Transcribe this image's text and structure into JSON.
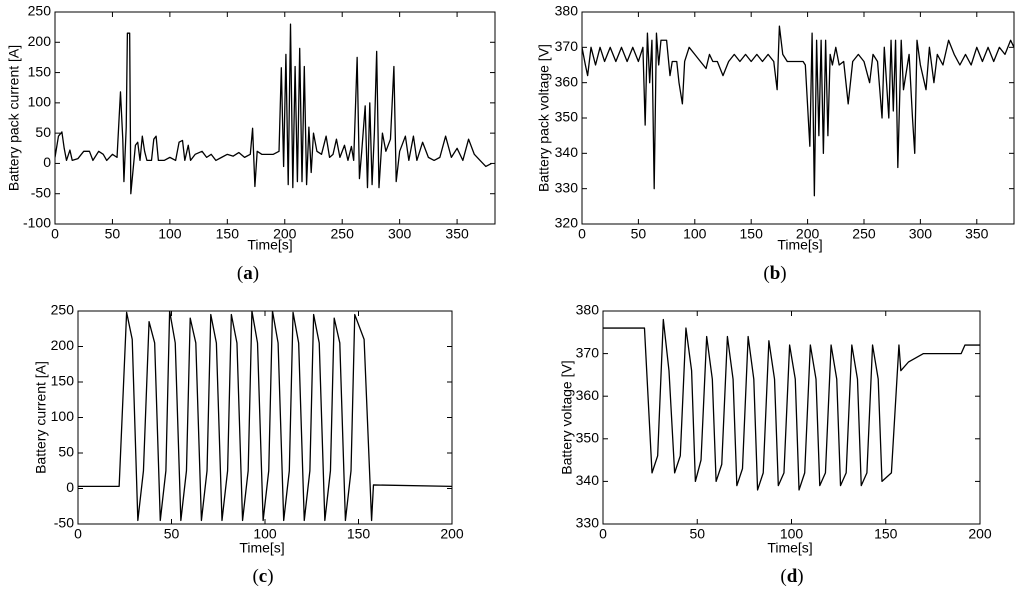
{
  "chart_data": [
    {
      "type": "line",
      "caption": "(a)",
      "xlabel": "Time[s]",
      "ylabel": "Battery pack current [A]",
      "xlim": [
        0,
        383
      ],
      "ylim": [
        -100,
        250
      ],
      "xticks": [
        0,
        50,
        100,
        150,
        200,
        250,
        300,
        350
      ],
      "yticks": [
        -100,
        -50,
        0,
        50,
        100,
        150,
        200,
        250
      ],
      "color": "#000000",
      "x": [
        0,
        3,
        6,
        8,
        10,
        13,
        15,
        20,
        25,
        30,
        33,
        38,
        42,
        45,
        50,
        54,
        57,
        59,
        60,
        62,
        63,
        65,
        66,
        68,
        70,
        72,
        74,
        76,
        78,
        80,
        84,
        86,
        88,
        90,
        95,
        100,
        105,
        108,
        111,
        113,
        116,
        118,
        122,
        128,
        132,
        136,
        140,
        145,
        150,
        155,
        160,
        165,
        170,
        172,
        174,
        176,
        180,
        185,
        190,
        195,
        197,
        199,
        201,
        203,
        205,
        207,
        209,
        211,
        213,
        215,
        217,
        219,
        221,
        223,
        225,
        228,
        232,
        236,
        239,
        242,
        245,
        248,
        252,
        255,
        258,
        260,
        263,
        265,
        267,
        270,
        272,
        274,
        276,
        278,
        280,
        282,
        285,
        288,
        292,
        295,
        297,
        300,
        305,
        308,
        312,
        315,
        320,
        325,
        330,
        335,
        340,
        345,
        350,
        355,
        360,
        365,
        370,
        375,
        380
      ],
      "values": [
        10,
        45,
        52,
        25,
        5,
        22,
        5,
        8,
        20,
        20,
        5,
        20,
        15,
        5,
        15,
        10,
        118,
        40,
        -30,
        60,
        215,
        215,
        -50,
        -10,
        30,
        35,
        5,
        45,
        20,
        5,
        5,
        40,
        45,
        5,
        5,
        10,
        5,
        35,
        38,
        5,
        30,
        5,
        15,
        20,
        10,
        15,
        5,
        10,
        15,
        12,
        18,
        10,
        15,
        58,
        -38,
        20,
        15,
        15,
        15,
        20,
        158,
        -5,
        180,
        -35,
        230,
        -40,
        160,
        -30,
        190,
        -30,
        160,
        -35,
        60,
        -15,
        50,
        20,
        15,
        45,
        10,
        15,
        40,
        10,
        30,
        5,
        28,
        5,
        175,
        -25,
        20,
        95,
        -40,
        100,
        -35,
        50,
        185,
        -40,
        50,
        20,
        40,
        160,
        -30,
        20,
        45,
        5,
        45,
        5,
        35,
        10,
        5,
        10,
        45,
        10,
        25,
        5,
        40,
        15,
        5,
        -5,
        0
      ]
    },
    {
      "type": "line",
      "caption": "(b)",
      "xlabel": "Time[s]",
      "ylabel": "Battery pack voltage [V]",
      "xlim": [
        0,
        383
      ],
      "ylim": [
        320,
        380
      ],
      "xticks": [
        0,
        50,
        100,
        150,
        200,
        250,
        300,
        350
      ],
      "yticks": [
        320,
        330,
        340,
        350,
        360,
        370,
        380
      ],
      "color": "#000000",
      "x": [
        0,
        3,
        5,
        8,
        12,
        16,
        20,
        25,
        30,
        35,
        40,
        45,
        50,
        54,
        56,
        58,
        60,
        62,
        64,
        66,
        68,
        70,
        75,
        78,
        80,
        84,
        86,
        89,
        91,
        95,
        100,
        105,
        110,
        113,
        116,
        120,
        125,
        130,
        135,
        140,
        145,
        150,
        155,
        160,
        165,
        170,
        173,
        175,
        178,
        182,
        190,
        196,
        198,
        202,
        204,
        206,
        208,
        210,
        212,
        214,
        216,
        218,
        220,
        222,
        225,
        228,
        232,
        236,
        240,
        245,
        250,
        255,
        258,
        262,
        266,
        268,
        270,
        272,
        274,
        276,
        278,
        280,
        283,
        285,
        290,
        293,
        295,
        297,
        300,
        305,
        308,
        312,
        315,
        320,
        325,
        330,
        335,
        340,
        345,
        350,
        355,
        360,
        365,
        370,
        375,
        380,
        383
      ],
      "values": [
        370,
        365,
        362,
        370,
        365,
        370,
        366,
        370,
        366,
        370,
        366,
        370,
        366,
        370,
        348,
        374,
        360,
        372,
        330,
        374,
        365,
        372,
        372,
        362,
        366,
        366,
        360,
        354,
        366,
        370,
        368,
        366,
        364,
        368,
        366,
        366,
        362,
        366,
        368,
        366,
        368,
        366,
        368,
        366,
        368,
        366,
        358,
        376,
        368,
        366,
        366,
        366,
        365,
        342,
        374,
        328,
        372,
        345,
        372,
        340,
        372,
        345,
        368,
        365,
        370,
        365,
        366,
        354,
        366,
        368,
        366,
        360,
        368,
        366,
        350,
        370,
        360,
        350,
        372,
        352,
        372,
        336,
        372,
        358,
        368,
        350,
        340,
        372,
        365,
        358,
        370,
        360,
        368,
        365,
        372,
        368,
        365,
        368,
        365,
        370,
        366,
        370,
        366,
        370,
        368,
        372,
        370
      ]
    },
    {
      "type": "line",
      "caption": "(c)",
      "xlabel": "Time[s]",
      "ylabel": "Battery current [A]",
      "xlim": [
        0,
        200
      ],
      "ylim": [
        -50,
        250
      ],
      "xticks": [
        0,
        50,
        100,
        150,
        200
      ],
      "yticks": [
        -50,
        0,
        50,
        100,
        150,
        200,
        250
      ],
      "color": "#000000",
      "x": [
        0,
        22,
        26,
        29,
        32,
        35,
        38,
        41,
        44,
        47,
        49,
        52,
        55,
        58,
        60,
        63,
        66,
        69,
        71,
        74,
        77,
        80,
        82,
        85,
        88,
        91,
        93,
        96,
        99,
        102,
        104,
        107,
        110,
        113,
        115,
        118,
        121,
        124,
        126,
        129,
        132,
        135,
        137,
        140,
        143,
        146,
        148,
        153,
        157,
        158,
        200
      ],
      "values": [
        3,
        3,
        248,
        210,
        -45,
        25,
        235,
        205,
        -45,
        25,
        250,
        205,
        -45,
        25,
        240,
        205,
        -45,
        25,
        245,
        205,
        -45,
        25,
        245,
        205,
        -45,
        25,
        250,
        205,
        -45,
        25,
        250,
        205,
        -45,
        25,
        248,
        205,
        -45,
        25,
        245,
        205,
        -45,
        25,
        240,
        205,
        -45,
        25,
        245,
        210,
        -45,
        5,
        3
      ]
    },
    {
      "type": "line",
      "caption": "(d)",
      "xlabel": "Time[s]",
      "ylabel": "Battery voltage [V]",
      "xlim": [
        0,
        200
      ],
      "ylim": [
        330,
        380
      ],
      "xticks": [
        0,
        50,
        100,
        150,
        200
      ],
      "yticks": [
        330,
        340,
        350,
        360,
        370,
        380
      ],
      "color": "#000000",
      "x": [
        0,
        22,
        26,
        29,
        32,
        35,
        38,
        41,
        44,
        47,
        49,
        52,
        55,
        58,
        60,
        63,
        66,
        69,
        71,
        74,
        77,
        80,
        82,
        85,
        88,
        91,
        93,
        96,
        99,
        102,
        104,
        107,
        110,
        113,
        115,
        118,
        121,
        124,
        126,
        129,
        132,
        135,
        137,
        140,
        143,
        146,
        148,
        153,
        157,
        158,
        162,
        170,
        190,
        192,
        200
      ],
      "values": [
        376,
        376,
        342,
        346,
        378,
        366,
        342,
        346,
        376,
        366,
        340,
        345,
        374,
        364,
        340,
        344,
        374,
        364,
        339,
        343,
        374,
        364,
        338,
        342,
        373,
        364,
        339,
        342,
        372,
        364,
        338,
        342,
        372,
        364,
        339,
        342,
        372,
        364,
        339,
        342,
        372,
        364,
        339,
        342,
        372,
        364,
        340,
        342,
        372,
        366,
        368,
        370,
        370,
        372,
        372
      ]
    }
  ]
}
